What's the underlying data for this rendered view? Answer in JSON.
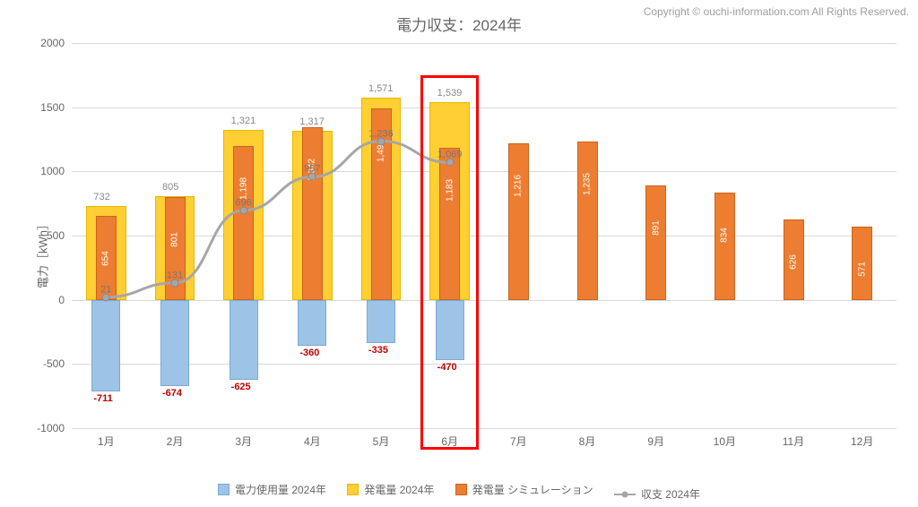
{
  "copyright": "Copyright © ouchi-information.com All Rights Reserved.",
  "title": "電力収支：2024年",
  "ylabel": "電力［kWh］",
  "chart": {
    "type": "bar+line",
    "ylim": [
      -1000,
      2000
    ],
    "yticks": [
      -1000,
      -500,
      0,
      500,
      1000,
      1500,
      2000
    ],
    "grid_color": "#d9d9d9",
    "background_color": "#ffffff",
    "categories": [
      "1月",
      "2月",
      "3月",
      "4月",
      "5月",
      "6月",
      "7月",
      "8月",
      "9月",
      "10月",
      "11月",
      "12月"
    ],
    "highlight_index": 5,
    "highlight_color": "#ff0000",
    "series_usage": {
      "label": "電力使用量 2024年",
      "color": "#9dc3e6",
      "border_color": "#7ba9d2",
      "label_color": "#c00000",
      "values": [
        -711,
        -674,
        -625,
        -360,
        -335,
        -470,
        null,
        null,
        null,
        null,
        null,
        null
      ]
    },
    "series_gen_actual": {
      "label": "発電量 2024年",
      "color": "#ffcf33",
      "border_color": "#e8b800",
      "label_color": "#888888",
      "values": [
        732,
        805,
        1321,
        1317,
        1571,
        1539,
        null,
        null,
        null,
        null,
        null,
        null
      ]
    },
    "series_gen_sim": {
      "label": "発電量 シミュレーション",
      "color": "#ed7d31",
      "border_color": "#c9651e",
      "label_color": "#ffffff",
      "values": [
        654,
        801,
        1198,
        1342,
        1490,
        1183,
        1216,
        1235,
        891,
        834,
        626,
        571
      ]
    },
    "series_balance": {
      "label": "収支 2024年",
      "color": "#a6a6a6",
      "marker_color": "#a6a6a6",
      "label_color": "#777777",
      "values": [
        21,
        131,
        696,
        957,
        1236,
        1069,
        null,
        null,
        null,
        null,
        null,
        null
      ]
    }
  },
  "fmt": {
    "usage_labels": [
      "-711",
      "-674",
      "-625",
      "-360",
      "-335",
      "-470",
      "",
      "",
      "",
      "",
      "",
      ""
    ],
    "gen_actual_labels": [
      "732",
      "805",
      "1,321",
      "1,317",
      "1,571",
      "1,539",
      "",
      "",
      "",
      "",
      "",
      ""
    ],
    "gen_sim_labels": [
      "654",
      "801",
      "1,198",
      "1,342",
      "1,490",
      "1,183",
      "1,216",
      "1,235",
      "891",
      "834",
      "626",
      "571"
    ],
    "balance_labels": [
      "21",
      "131",
      "696",
      "957",
      "1,236",
      "1,069",
      "",
      "",
      "",
      "",
      "",
      ""
    ]
  }
}
